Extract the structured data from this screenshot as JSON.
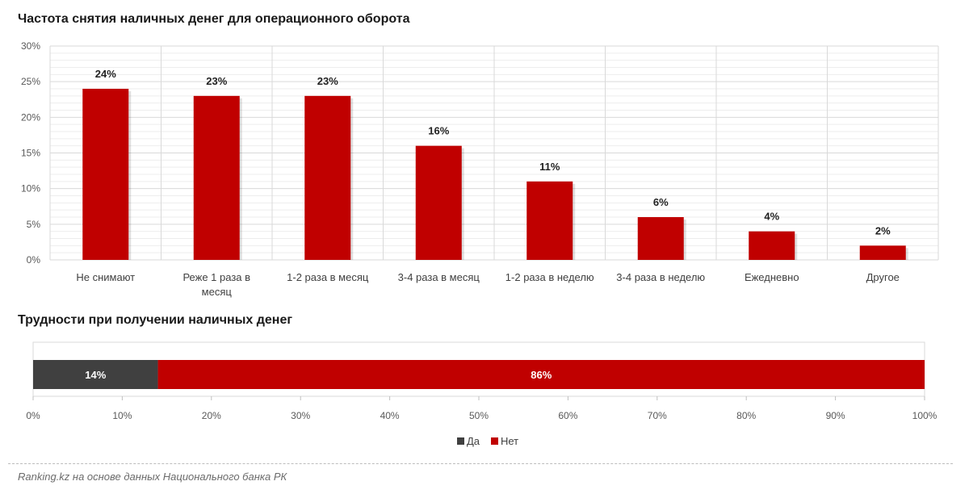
{
  "source": "Ranking.kz на основе данных Национального банка РК",
  "colors": {
    "red": "#c00000",
    "dark": "#404040",
    "grid": "#d9d9d9"
  },
  "chart_data": [
    {
      "type": "bar",
      "title": "Частота снятия наличных денег для операционного оборота",
      "categories": [
        [
          "Не снимают"
        ],
        [
          "Реже 1 раза в",
          "месяц"
        ],
        [
          "1-2 раза в месяц"
        ],
        [
          "3-4 раза в месяц"
        ],
        [
          "1-2 раза в неделю"
        ],
        [
          "3-4 раза в неделю"
        ],
        [
          "Ежедневно"
        ],
        [
          "Другое"
        ]
      ],
      "values": [
        24,
        23,
        23,
        16,
        11,
        6,
        4,
        2
      ],
      "data_labels": [
        "24%",
        "23%",
        "23%",
        "16%",
        "11%",
        "6%",
        "4%",
        "2%"
      ],
      "ylim": [
        0,
        30
      ],
      "yticks": [
        "0%",
        "5%",
        "10%",
        "15%",
        "20%",
        "25%",
        "30%"
      ],
      "grid": true
    },
    {
      "type": "bar",
      "orientation": "horizontal-stacked",
      "title": "Трудности при получении наличных денег",
      "series": [
        {
          "name": "Да",
          "values": [
            14
          ],
          "label": "14%"
        },
        {
          "name": "Нет",
          "values": [
            86
          ],
          "label": "86%"
        }
      ],
      "xlim": [
        0,
        100
      ],
      "xticks": [
        "0%",
        "10%",
        "20%",
        "30%",
        "40%",
        "50%",
        "60%",
        "70%",
        "80%",
        "90%",
        "100%"
      ],
      "legend": "bottom"
    }
  ]
}
